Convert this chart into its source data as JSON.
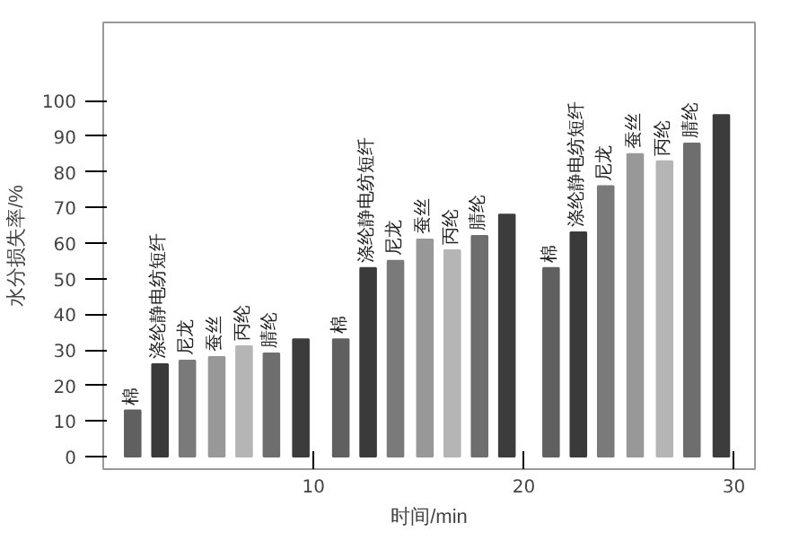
{
  "chart_data": {
    "type": "bar",
    "xlabel": "时间/min",
    "ylabel": "水分损失率/%",
    "xlim": [
      0,
      31
    ],
    "xticks": [
      10,
      20,
      30
    ],
    "ylim": [
      -3.5,
      122
    ],
    "yticks": [
      0,
      10,
      20,
      30,
      40,
      50,
      60,
      70,
      80,
      90,
      100
    ],
    "grid": false,
    "series": [
      {
        "name": "棉",
        "color": "#606060",
        "x": [
          1.4,
          11.3,
          21.3
        ],
        "values": [
          13,
          33,
          53
        ]
      },
      {
        "name": "涤纶静电纺短纤",
        "color": "#3a3a3a",
        "x": [
          2.7,
          12.6,
          22.6
        ],
        "values": [
          26,
          53,
          63
        ]
      },
      {
        "name": "尼龙",
        "color": "#7a7a7a",
        "x": [
          4.0,
          13.9,
          23.9
        ],
        "values": [
          27,
          55,
          76
        ]
      },
      {
        "name": "蚕丝",
        "color": "#989898",
        "x": [
          5.4,
          15.3,
          25.3
        ],
        "values": [
          28,
          61,
          85
        ]
      },
      {
        "name": "丙纶",
        "color": "#b5b5b5",
        "x": [
          6.7,
          16.6,
          26.7
        ],
        "values": [
          31,
          58,
          83
        ]
      },
      {
        "name": "腈纶",
        "color": "#6e6e6e",
        "x": [
          8.0,
          17.9,
          28.0
        ],
        "values": [
          29,
          62,
          88
        ]
      },
      {
        "color": "#3c3c3c",
        "x": [
          9.4,
          19.2,
          29.4
        ],
        "values": [
          33,
          68,
          96
        ]
      }
    ]
  }
}
